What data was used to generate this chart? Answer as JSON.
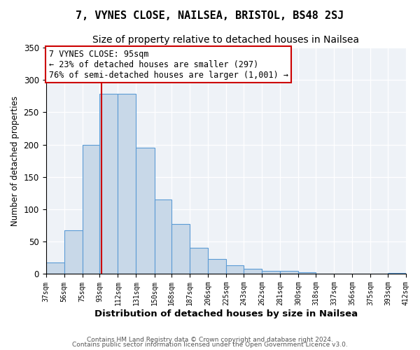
{
  "title": "7, VYNES CLOSE, NAILSEA, BRISTOL, BS48 2SJ",
  "subtitle": "Size of property relative to detached houses in Nailsea",
  "xlabel": "Distribution of detached houses by size in Nailsea",
  "ylabel": "Number of detached properties",
  "bins": [
    37,
    56,
    75,
    93,
    112,
    131,
    150,
    168,
    187,
    206,
    225,
    243,
    262,
    281,
    300,
    318,
    337,
    356,
    375,
    393,
    412
  ],
  "values": [
    18,
    68,
    200,
    278,
    278,
    195,
    115,
    77,
    40,
    23,
    14,
    8,
    5,
    5,
    3,
    1,
    1,
    1,
    1,
    2
  ],
  "bar_color": "#c8d8e8",
  "bar_edge_color": "#5b9bd5",
  "vline_x": 95,
  "vline_color": "#cc0000",
  "annotation_line1": "7 VYNES CLOSE: 95sqm",
  "annotation_line2": "← 23% of detached houses are smaller (297)",
  "annotation_line3": "76% of semi-detached houses are larger (1,001) →",
  "annotation_box_edge": "#cc0000",
  "annotation_fontsize": 8.5,
  "ylim": [
    0,
    350
  ],
  "yticks": [
    0,
    50,
    100,
    150,
    200,
    250,
    300,
    350
  ],
  "background_color": "#eef2f7",
  "footer1": "Contains HM Land Registry data © Crown copyright and database right 2024.",
  "footer2": "Contains public sector information licensed under the Open Government Licence v3.0.",
  "title_fontsize": 11,
  "subtitle_fontsize": 10,
  "xlabel_fontsize": 9.5,
  "ylabel_fontsize": 8.5,
  "tick_label_fontsize": 7,
  "ytick_fontsize": 8.5,
  "tick_labels": [
    "37sqm",
    "56sqm",
    "75sqm",
    "93sqm",
    "112sqm",
    "131sqm",
    "150sqm",
    "168sqm",
    "187sqm",
    "206sqm",
    "225sqm",
    "243sqm",
    "262sqm",
    "281sqm",
    "300sqm",
    "318sqm",
    "337sqm",
    "356sqm",
    "375sqm",
    "393sqm",
    "412sqm"
  ],
  "grid_color": "#ffffff",
  "footer_fontsize": 6.5,
  "footer_color": "#555555"
}
